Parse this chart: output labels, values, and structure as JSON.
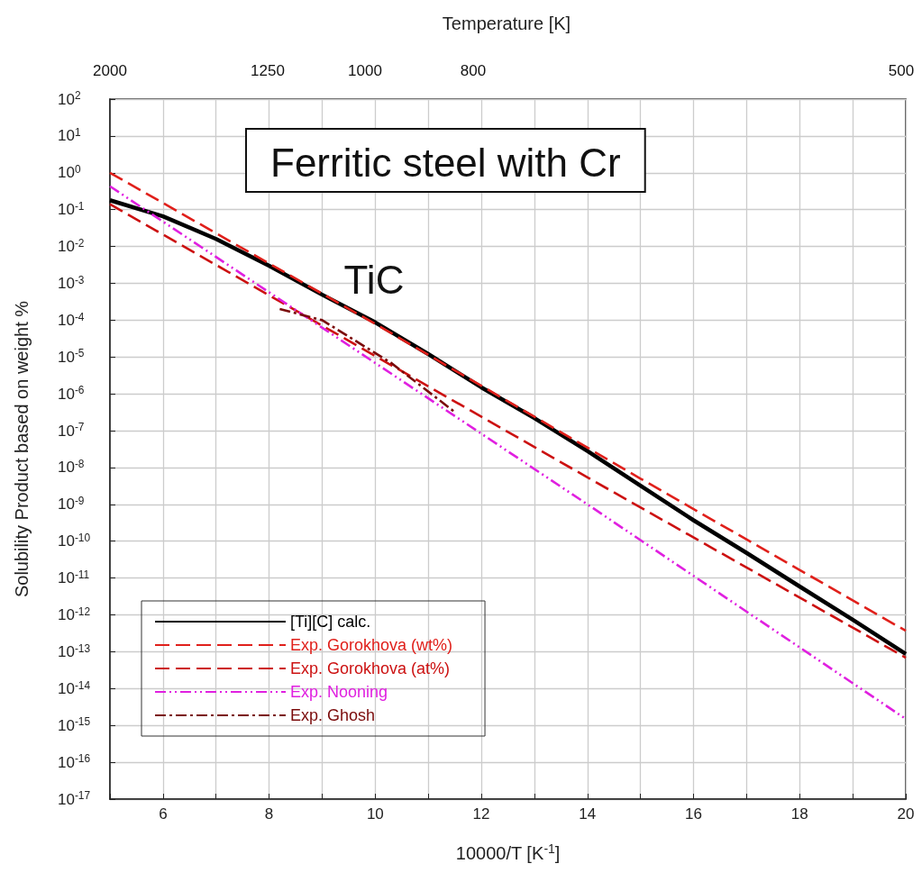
{
  "chart_data": {
    "type": "line",
    "title": "Ferritic steel with Cr",
    "xlabel": "10000/T [K$^{-1}$]",
    "x2label": "Temperature [K]",
    "ylabel": "Solubility Product based on weight %",
    "annotations": [
      "TiC",
      "2000",
      "1250",
      "1000",
      "800",
      "500"
    ],
    "xlim": [
      5,
      20
    ],
    "xticks": [
      {
        "value": 5,
        "label": null
      },
      6,
      {
        "value": 7,
        "label": null
      },
      8,
      {
        "value": 9,
        "label": null
      },
      10,
      {
        "value": 11,
        "label": null
      },
      12,
      {
        "value": 13,
        "label": null
      },
      14,
      {
        "value": 15,
        "label": null
      },
      16,
      {
        "value": 17,
        "label": null
      },
      18,
      {
        "value": 19,
        "label": null
      },
      20
    ],
    "log": "y",
    "ylim": [
      1e-17,
      100
    ],
    "yticks": [
      {
        "value": 100,
        "label": "10$^{2}$"
      },
      {
        "value": 10,
        "label": "10$^{1}$"
      },
      {
        "value": 1,
        "label": "10$^{0}$"
      },
      {
        "value": 0.1,
        "label": "10$^{-1}$"
      },
      {
        "value": 0.01,
        "label": "10$^{-2}$"
      },
      {
        "value": 0.001,
        "label": "10$^{-3}$"
      },
      {
        "value": 0.0001,
        "label": "10$^{-4}$"
      },
      {
        "value": 1e-05,
        "label": "10$^{-5}$"
      },
      {
        "value": 1e-06,
        "label": "10$^{-6}$"
      },
      {
        "value": 1e-07,
        "label": "10$^{-7}$"
      },
      {
        "value": 1e-08,
        "label": "10$^{-8}$"
      },
      {
        "value": 1e-09,
        "label": "10$^{-9}$"
      },
      {
        "value": 1e-10,
        "label": "10$^{-10}$"
      },
      {
        "value": 1e-11,
        "label": "10$^{-11}$"
      },
      {
        "value": 1e-12,
        "label": "10$^{-12}$"
      },
      {
        "value": 1e-13,
        "label": "10$^{-13}$"
      },
      {
        "value": 1e-14,
        "label": "10$^{-14}$"
      },
      {
        "value": 1e-15,
        "label": "10$^{-15}$"
      },
      {
        "value": 1e-16,
        "label": "10$^{-16}$"
      },
      {
        "value": 1e-17,
        "label": "10$^{-17}$"
      }
    ],
    "grid": true,
    "legend": "bottom left",
    "marker": "none",
    "series": [
      {
        "name": "[Ti][C] calc.",
        "color": "#000000",
        "line_style": "solid",
        "x": [
          5,
          6,
          7,
          8,
          9,
          10,
          11,
          12,
          13,
          14,
          15,
          16,
          17,
          18,
          19,
          20
        ],
        "values": [
          0.18,
          0.066,
          0.016,
          0.003,
          0.00049,
          8.7e-05,
          1.2e-05,
          1.5e-06,
          2.2e-07,
          2.8e-08,
          3.2e-09,
          3.7e-10,
          4.8e-11,
          5.9e-12,
          7.4e-13,
          8.7e-14
        ]
      },
      {
        "name": "Exp. Gorokhova (wt%)",
        "color": "#e0201b",
        "line_style": "dashed",
        "x": [
          5,
          10,
          15,
          20
        ],
        "values": [
          1.0,
          7.9e-05,
          5e-09,
          3.7e-13
        ]
      },
      {
        "name": "Exp. Gorokhova (at%)",
        "color": "#cc1111",
        "line_style": "dashed",
        "x": [
          5,
          14,
          20
        ],
        "values": [
          0.14,
          5.4e-09,
          6.9e-14
        ]
      },
      {
        "name": "Exp. Nooning",
        "color": "#e020e0",
        "line_style": "dashdotdot",
        "x": [
          5,
          14,
          20
        ],
        "values": [
          0.43,
          1e-09,
          1.5e-15
        ]
      },
      {
        "name": "Exp. Ghosh",
        "color": "#7a0a0a",
        "line_style": "dashdot",
        "x": [
          8.2,
          9,
          10.3,
          11.5
        ],
        "values": [
          0.0002,
          0.0001,
          6.9e-06,
          3.2e-07
        ]
      }
    ]
  }
}
